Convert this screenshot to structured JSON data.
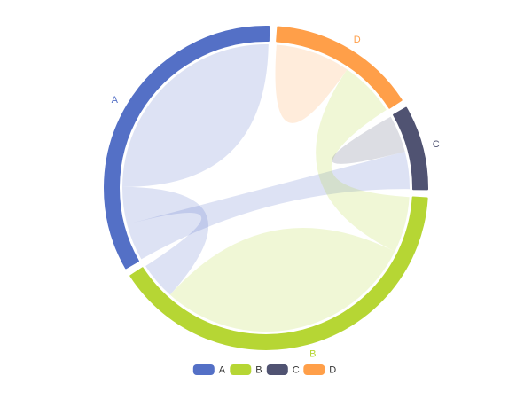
{
  "chart_data": {
    "type": "chord",
    "title": "",
    "groups": [
      {
        "name": "A",
        "color": "#5470c6"
      },
      {
        "name": "B",
        "color": "#b6d634"
      },
      {
        "name": "C",
        "color": "#505372"
      },
      {
        "name": "D",
        "color": "#ff9f49"
      }
    ],
    "links": [
      {
        "source": "A",
        "target": "A",
        "value": 60
      },
      {
        "source": "A",
        "target": "B",
        "value": 20
      },
      {
        "source": "A",
        "target": "C",
        "value": 20
      },
      {
        "source": "B",
        "target": "B",
        "value": 70
      },
      {
        "source": "B",
        "target": "D",
        "value": 30
      },
      {
        "source": "C",
        "target": "C",
        "value": 10
      },
      {
        "source": "D",
        "target": "D",
        "value": 20
      }
    ],
    "legend": {
      "position": "bottom",
      "items": [
        "A",
        "B",
        "C",
        "D"
      ]
    }
  }
}
